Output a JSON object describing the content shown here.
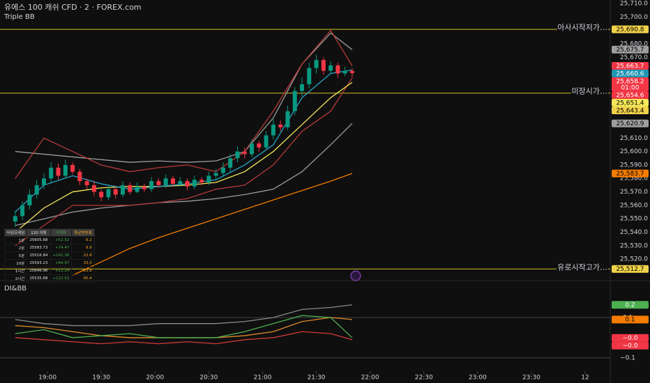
{
  "chart_data": {
    "type": "candlestick",
    "title": "유에스 100 캐쉬 CFD · 2 · FOREX.com",
    "subtitle": "Triple BB",
    "up_color": "#089981",
    "down_color": "#f23645",
    "xlim": [
      1113.5,
      1454
    ],
    "ylim": [
      25505.6,
      25712.6
    ],
    "xticks": [
      {
        "value": 1140,
        "label": "19:00"
      },
      {
        "value": 1170,
        "label": "19:30"
      },
      {
        "value": 1200,
        "label": "20:00"
      },
      {
        "value": 1230,
        "label": "20:30"
      },
      {
        "value": 1260,
        "label": "21:00"
      },
      {
        "value": 1290,
        "label": "21:30"
      },
      {
        "value": 1320,
        "label": "22:00"
      },
      {
        "value": 1350,
        "label": "22:30"
      },
      {
        "value": 1380,
        "label": "23:00"
      },
      {
        "value": 1410,
        "label": "23:30"
      },
      {
        "value": 1440,
        "label": "12"
      }
    ],
    "yticks": [
      {
        "value": 25520,
        "label": "25,520.0"
      },
      {
        "value": 25530,
        "label": "25,530.0"
      },
      {
        "value": 25540,
        "label": "25,540.0"
      },
      {
        "value": 25550,
        "label": "25,550.0"
      },
      {
        "value": 25560,
        "label": "25,560.0"
      },
      {
        "value": 25570,
        "label": "25,570.0"
      },
      {
        "value": 25580,
        "label": "25,580.0"
      },
      {
        "value": 25590,
        "label": "25,590.0"
      },
      {
        "value": 25600,
        "label": "25,600.0"
      },
      {
        "value": 25610,
        "label": "25,610.0"
      },
      {
        "value": 25620,
        "label": "25,620.0"
      },
      {
        "value": 25630,
        "label": "25,630.0"
      },
      {
        "value": 25640,
        "label": "25,640.0"
      },
      {
        "value": 25650,
        "label": "25,650.0"
      },
      {
        "value": 25660,
        "label": "25,660.0"
      },
      {
        "value": 25670,
        "label": "25,670.0"
      },
      {
        "value": 25680,
        "label": "25,680.0"
      },
      {
        "value": 25690,
        "label": "25,690.0"
      },
      {
        "value": 25700,
        "label": "25,700.0"
      },
      {
        "value": 25710,
        "label": "25,710.0"
      }
    ],
    "x": [
      1122,
      1126,
      1130,
      1134,
      1138,
      1142,
      1146,
      1150,
      1154,
      1158,
      1162,
      1166,
      1170,
      1174,
      1178,
      1182,
      1186,
      1190,
      1194,
      1198,
      1202,
      1206,
      1210,
      1214,
      1218,
      1222,
      1226,
      1230,
      1234,
      1238,
      1242,
      1246,
      1250,
      1254,
      1258,
      1262,
      1266,
      1270,
      1274,
      1278,
      1282,
      1286,
      1290,
      1294,
      1298,
      1302,
      1306,
      1310
    ],
    "open": [
      25548,
      25552,
      25560,
      25568,
      25575,
      25580,
      25588,
      25582,
      25590,
      25585,
      25578,
      25575,
      25570,
      25566,
      25572,
      25568,
      25575,
      25570,
      25574,
      25572,
      25578,
      25575,
      25580,
      25576,
      25578,
      25574,
      25579,
      25577,
      25582,
      25584,
      25588,
      25595,
      25600,
      25598,
      25606,
      25603,
      25612,
      25620,
      25618,
      25630,
      25645,
      25650,
      25662,
      25668,
      25660,
      25664,
      25658,
      25660
    ],
    "high": [
      25556,
      25563,
      25572,
      25579,
      25584,
      25592,
      25591,
      25594,
      25592,
      25587,
      25580,
      25578,
      25572,
      25575,
      25574,
      25578,
      25577,
      25577,
      25576,
      25581,
      25580,
      25583,
      25582,
      25581,
      25580,
      25582,
      25581,
      25585,
      25587,
      25592,
      25598,
      25604,
      25603,
      25609,
      25608,
      25615,
      25624,
      25623,
      25634,
      25648,
      25655,
      25666,
      25672,
      25670,
      25667,
      25666,
      25663,
      25662
    ],
    "low": [
      25544,
      25549,
      25557,
      25565,
      25572,
      25577,
      25579,
      25580,
      25583,
      25575,
      25572,
      25567,
      25563,
      25564,
      25565,
      25566,
      25568,
      25569,
      25570,
      25570,
      25573,
      25573,
      25574,
      25574,
      25571,
      25572,
      25575,
      25575,
      25579,
      25581,
      25585,
      25592,
      25595,
      25596,
      25600,
      25601,
      25609,
      25615,
      25616,
      25627,
      25641,
      25647,
      25658,
      25657,
      25658,
      25655,
      25656,
      25655
    ],
    "close": [
      25552,
      25560,
      25568,
      25575,
      25580,
      25588,
      25582,
      25590,
      25585,
      25578,
      25575,
      25570,
      25566,
      25572,
      25568,
      25575,
      25570,
      25574,
      25572,
      25578,
      25575,
      25580,
      25576,
      25578,
      25574,
      25579,
      25577,
      25582,
      25584,
      25588,
      25595,
      25600,
      25598,
      25606,
      25603,
      25612,
      25620,
      25618,
      25630,
      25645,
      25650,
      25662,
      25668,
      25660,
      25664,
      25658,
      25660,
      25658.2
    ],
    "line_x": [
      1122,
      1138,
      1154,
      1170,
      1186,
      1202,
      1218,
      1234,
      1250,
      1266,
      1282,
      1298,
      1310
    ],
    "lines": [
      {
        "color": "#9e9e9e",
        "values": [
          25600,
          25598,
          25596,
          25594,
          25592,
          25593,
          25592,
          25593,
          25600,
          25625,
          25665,
          25688,
          25675.7
        ]
      },
      {
        "color": "#9e9e9e",
        "values": [
          25545,
          25550,
          25555,
          25558,
          25560,
          25562,
          25563,
          25565,
          25568,
          25572,
          25585,
          25605,
          25620.9
        ]
      },
      {
        "color": "#b83a3a",
        "values": [
          25580,
          25610,
          25600,
          25590,
          25585,
          25588,
          25590,
          25585,
          25600,
          25630,
          25665,
          25690,
          25663.7
        ]
      },
      {
        "color": "#b83a3a",
        "values": [
          25530,
          25545,
          25560,
          25560,
          25560,
          25562,
          25565,
          25572,
          25575,
          25590,
          25615,
          25630,
          25654.6
        ]
      },
      {
        "color": "#f57c00",
        "values": [
          null,
          null,
          25508,
          25518,
          25528,
          25536,
          25543,
          25550,
          25557,
          25564,
          25571,
          25578,
          25583.7
        ]
      },
      {
        "color": "#f5e85a",
        "values": [
          25540,
          25558,
          25570,
          25573,
          25574,
          25574,
          25575,
          25577,
          25585,
          25600,
          25620,
          25640,
          25651.4
        ]
      },
      {
        "color": "#26a6c9",
        "values": [
          25555,
          25575,
          25582,
          25576,
          25572,
          25574,
          25576,
          25579,
          25590,
          25605,
          25640,
          25658,
          25660.6
        ]
      }
    ],
    "levels": [
      {
        "value": 25690.8,
        "label": "아사시작저가…"
      },
      {
        "value": 25643.4,
        "label": "미장시가…"
      },
      {
        "value": 25512.7,
        "label": "유로시작고가…"
      }
    ],
    "level_color": "#d4c22a",
    "price_tags": [
      {
        "value": 25690.8,
        "label": "25,690.8",
        "color": "#f0d24a",
        "text_color": "#000000"
      },
      {
        "value": 25675.7,
        "label": "25,675.7",
        "color": "#9e9e9e",
        "text_color": "#000000"
      },
      {
        "value": 25663.7,
        "label": "25,663.7",
        "color": "#f23645",
        "text_color": "#ffffff"
      },
      {
        "value": 25660.6,
        "label": "25,660.6",
        "color": "#2196b3",
        "text_color": "#ffffff"
      },
      {
        "value": 25658.2,
        "label": "25,658.2",
        "sub": "01:00",
        "color": "#f23645",
        "text_color": "#ffffff"
      },
      {
        "value": 25654.6,
        "label": "25,654.6",
        "color": "#f23645",
        "text_color": "#ffffff"
      },
      {
        "value": 25651.4,
        "label": "25,651.4",
        "color": "#f5e85a",
        "text_color": "#000000"
      },
      {
        "value": 25643.4,
        "label": "25,643.4",
        "color": "#f0d24a",
        "text_color": "#000000"
      },
      {
        "value": 25620.9,
        "label": "25,620.9",
        "color": "#9e9e9e",
        "text_color": "#000000"
      },
      {
        "value": 25583.7,
        "label": "25,583.7",
        "color": "#f57c00",
        "text_color": "#000000"
      },
      {
        "value": 25512.7,
        "label": "25,512.7",
        "color": "#f0d24a",
        "text_color": "#000000"
      }
    ],
    "lower_pane": {
      "title": "DI&BB",
      "ylim": [
        -0.166,
        0.283
      ],
      "yticks": [
        {
          "value": 0.1,
          "label": "0.1"
        },
        {
          "value": -0.1,
          "label": "−0.1"
        }
      ],
      "lines": [
        {
          "color": "#8a8a8a",
          "values": [
            0.09,
            0.07,
            0.06,
            0.06,
            0.06,
            0.07,
            0.07,
            0.07,
            0.08,
            0.1,
            0.14,
            0.15,
            0.163
          ]
        },
        {
          "color": "#e08a2a",
          "values": [
            0.06,
            0.05,
            0.03,
            0.01,
            0,
            0,
            0,
            0,
            0.01,
            0.03,
            0.08,
            0.1,
            0.09
          ]
        },
        {
          "color": "#d23a3a",
          "values": [
            0.0,
            -0.01,
            -0.02,
            -0.03,
            -0.02,
            -0.03,
            -0.02,
            -0.03,
            -0.01,
            0.0,
            0.03,
            0.02,
            -0.01
          ]
        },
        {
          "color": "#4caf50",
          "values": [
            0.02,
            0.04,
            0.0,
            0.01,
            0.02,
            0.0,
            0.0,
            0.0,
            0.03,
            0.07,
            0.11,
            0.1,
            0.0
          ]
        }
      ],
      "price_tags": [
        {
          "value": 0.163,
          "label": "0.2",
          "color": "#4caf50",
          "text_color": "#ffffff"
        },
        {
          "value": 0.09,
          "label": "0.1",
          "color": "#f57c00",
          "text_color": "#000000"
        },
        {
          "value": -0.001,
          "label": "−0.0",
          "color": "#f23645",
          "text_color": "#ffffff"
        },
        {
          "value": -0.01,
          "label": "−0.0",
          "color": "#f23645",
          "text_color": "#ffffff"
        }
      ]
    }
  },
  "table": {
    "header": [
      "타임프레임",
      "120 이평",
      "가격차",
      "평균변동폭"
    ],
    "rows": [
      [
        "1분",
        "25605.68",
        "+52.52",
        "6.2"
      ],
      [
        "2분",
        "25583.73",
        "+74.47",
        "9.9"
      ],
      [
        "5분",
        "25516.84",
        "+141.36",
        "22.8"
      ],
      [
        "10분",
        "25593.23",
        "+64.97",
        "33.0"
      ],
      [
        "1시간",
        "25646.96",
        "+11.24",
        "83.8"
      ],
      [
        "2시간",
        "25535.68",
        "+122.52",
        "90.4"
      ]
    ]
  }
}
